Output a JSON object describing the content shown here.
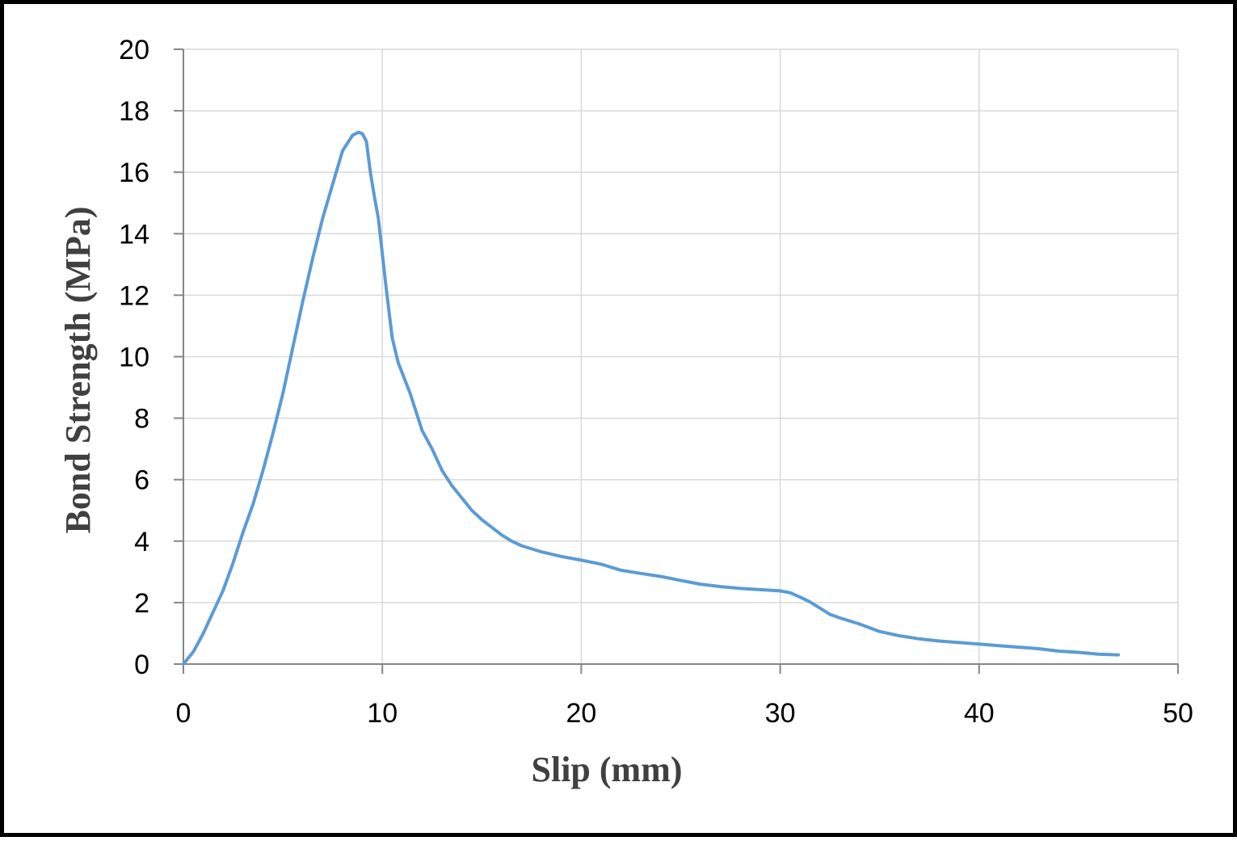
{
  "chart_data": {
    "type": "line",
    "title": "",
    "xlabel": "Slip (mm)",
    "ylabel": "Bond Strength (MPa)",
    "xlim": [
      0,
      50
    ],
    "ylim": [
      0,
      20
    ],
    "xticks": [
      0,
      10,
      20,
      30,
      40,
      50
    ],
    "yticks": [
      0,
      2,
      4,
      6,
      8,
      10,
      12,
      14,
      16,
      18,
      20
    ],
    "grid": true,
    "legend": "none",
    "colors": {
      "line": "#5b9bd5",
      "grid": "#d9d9d9",
      "axis": "#868686",
      "frame": "#000000"
    },
    "series": [
      {
        "x": [
          0,
          0.5,
          1,
          1.5,
          2,
          2.5,
          3,
          3.5,
          4,
          4.5,
          5,
          5.5,
          6,
          6.5,
          7,
          7.5,
          8,
          8.5,
          8.8,
          9.0,
          9.2,
          9.4,
          9.6,
          9.8,
          10.2,
          10.5,
          10.8,
          11.1,
          11.4,
          12,
          12.5,
          13,
          13.5,
          14,
          14.5,
          15,
          15.5,
          16,
          16.5,
          17,
          18,
          19,
          20,
          21,
          22,
          23,
          24,
          25,
          26,
          27,
          28,
          29,
          30,
          30.5,
          31,
          31.5,
          32,
          32.5,
          33,
          34,
          35,
          36,
          37,
          38,
          39,
          40,
          41,
          42,
          43,
          44,
          45,
          46,
          47
        ],
        "y": [
          0,
          0.4,
          1.0,
          1.7,
          2.4,
          3.3,
          4.3,
          5.2,
          6.3,
          7.5,
          8.8,
          10.3,
          11.8,
          13.2,
          14.5,
          15.6,
          16.7,
          17.2,
          17.3,
          17.25,
          17.0,
          16.0,
          15.2,
          14.5,
          12.2,
          10.6,
          9.8,
          9.3,
          8.8,
          7.6,
          7.0,
          6.3,
          5.8,
          5.4,
          5.0,
          4.7,
          4.45,
          4.2,
          4.0,
          3.85,
          3.65,
          3.5,
          3.38,
          3.25,
          3.05,
          2.95,
          2.85,
          2.72,
          2.6,
          2.52,
          2.46,
          2.42,
          2.38,
          2.32,
          2.18,
          2.02,
          1.82,
          1.62,
          1.5,
          1.3,
          1.06,
          0.92,
          0.82,
          0.75,
          0.7,
          0.65,
          0.6,
          0.55,
          0.5,
          0.42,
          0.38,
          0.32,
          0.3
        ]
      }
    ]
  }
}
